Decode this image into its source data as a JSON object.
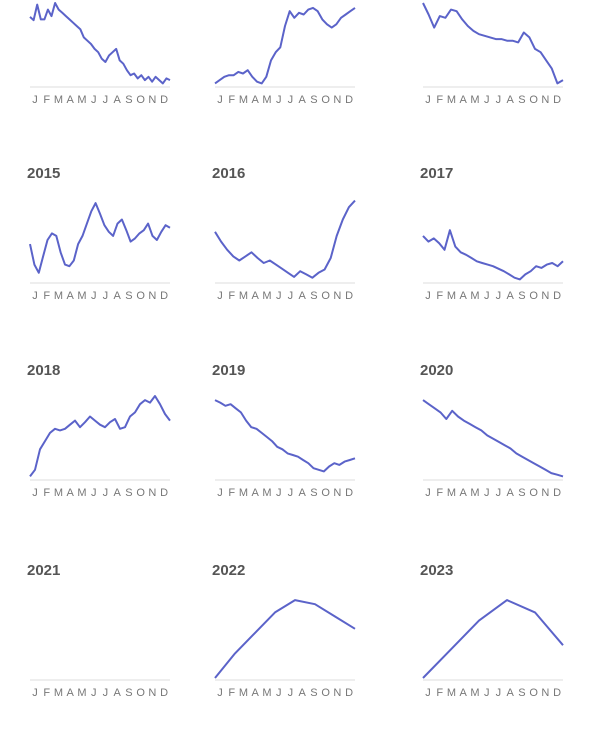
{
  "chart_data": {
    "type": "line",
    "month_ticks": [
      "J",
      "F",
      "M",
      "A",
      "M",
      "J",
      "J",
      "A",
      "S",
      "O",
      "N",
      "D"
    ],
    "colors": {
      "line": "#5b63c9",
      "axis": "#dcdcdc",
      "ticks": "#777777",
      "title": "#555555"
    },
    "panels": [
      {
        "year": "",
        "values": [
          0.83,
          0.79,
          0.98,
          0.8,
          0.8,
          0.92,
          0.84,
          1.0,
          0.92,
          0.88,
          0.84,
          0.8,
          0.76,
          0.72,
          0.68,
          0.58,
          0.54,
          0.5,
          0.44,
          0.4,
          0.32,
          0.28,
          0.36,
          0.4,
          0.44,
          0.3,
          0.26,
          0.18,
          0.12,
          0.14,
          0.08,
          0.12,
          0.06,
          0.1,
          0.04,
          0.1,
          0.06,
          0.02,
          0.08,
          0.06
        ]
      },
      {
        "year": "",
        "values": [
          0.02,
          0.06,
          0.1,
          0.12,
          0.12,
          0.16,
          0.14,
          0.18,
          0.1,
          0.04,
          0.02,
          0.1,
          0.3,
          0.4,
          0.46,
          0.72,
          0.9,
          0.82,
          0.88,
          0.86,
          0.92,
          0.94,
          0.9,
          0.8,
          0.74,
          0.7,
          0.74,
          0.82,
          0.86,
          0.9,
          0.94
        ]
      },
      {
        "year": "",
        "values": [
          1.0,
          0.86,
          0.7,
          0.84,
          0.82,
          0.92,
          0.9,
          0.8,
          0.72,
          0.66,
          0.62,
          0.6,
          0.58,
          0.56,
          0.56,
          0.54,
          0.54,
          0.52,
          0.64,
          0.58,
          0.44,
          0.4,
          0.3,
          0.2,
          0.02,
          0.06
        ]
      },
      {
        "year": "2015",
        "values": [
          0.45,
          0.2,
          0.1,
          0.3,
          0.5,
          0.58,
          0.55,
          0.35,
          0.2,
          0.18,
          0.25,
          0.45,
          0.55,
          0.7,
          0.85,
          0.95,
          0.82,
          0.68,
          0.6,
          0.55,
          0.7,
          0.75,
          0.62,
          0.48,
          0.52,
          0.58,
          0.62,
          0.7,
          0.55,
          0.5,
          0.6,
          0.68,
          0.65
        ]
      },
      {
        "year": "2016",
        "values": [
          0.6,
          0.48,
          0.38,
          0.3,
          0.25,
          0.3,
          0.35,
          0.28,
          0.22,
          0.25,
          0.2,
          0.15,
          0.1,
          0.05,
          0.12,
          0.08,
          0.04,
          0.1,
          0.14,
          0.28,
          0.55,
          0.75,
          0.9,
          0.98
        ]
      },
      {
        "year": "2017",
        "values": [
          0.55,
          0.48,
          0.52,
          0.46,
          0.38,
          0.62,
          0.42,
          0.35,
          0.32,
          0.28,
          0.24,
          0.22,
          0.2,
          0.18,
          0.15,
          0.12,
          0.08,
          0.04,
          0.02,
          0.08,
          0.12,
          0.18,
          0.16,
          0.2,
          0.22,
          0.18,
          0.24
        ]
      },
      {
        "year": "2018",
        "values": [
          0.02,
          0.1,
          0.35,
          0.45,
          0.55,
          0.6,
          0.58,
          0.6,
          0.65,
          0.7,
          0.62,
          0.68,
          0.75,
          0.7,
          0.65,
          0.62,
          0.68,
          0.72,
          0.6,
          0.62,
          0.75,
          0.8,
          0.9,
          0.95,
          0.92,
          1.0,
          0.9,
          0.78,
          0.7
        ]
      },
      {
        "year": "2019",
        "values": [
          0.95,
          0.92,
          0.88,
          0.9,
          0.85,
          0.8,
          0.7,
          0.62,
          0.6,
          0.55,
          0.5,
          0.45,
          0.38,
          0.35,
          0.3,
          0.28,
          0.26,
          0.22,
          0.18,
          0.12,
          0.1,
          0.08,
          0.14,
          0.18,
          0.16,
          0.2,
          0.22,
          0.24
        ]
      },
      {
        "year": "2020",
        "values": [
          0.95,
          0.9,
          0.85,
          0.8,
          0.72,
          0.82,
          0.75,
          0.7,
          0.66,
          0.62,
          0.58,
          0.52,
          0.48,
          0.44,
          0.4,
          0.36,
          0.3,
          0.26,
          0.22,
          0.18,
          0.14,
          0.1,
          0.06,
          0.04,
          0.02
        ]
      },
      {
        "year": "2021",
        "values": []
      },
      {
        "year": "2022",
        "values": [
          0.0,
          0.3,
          0.55,
          0.8,
          0.95,
          0.9,
          0.75,
          0.6
        ]
      },
      {
        "year": "2023",
        "values": [
          0.0,
          0.35,
          0.7,
          0.95,
          0.8,
          0.4
        ]
      }
    ]
  }
}
